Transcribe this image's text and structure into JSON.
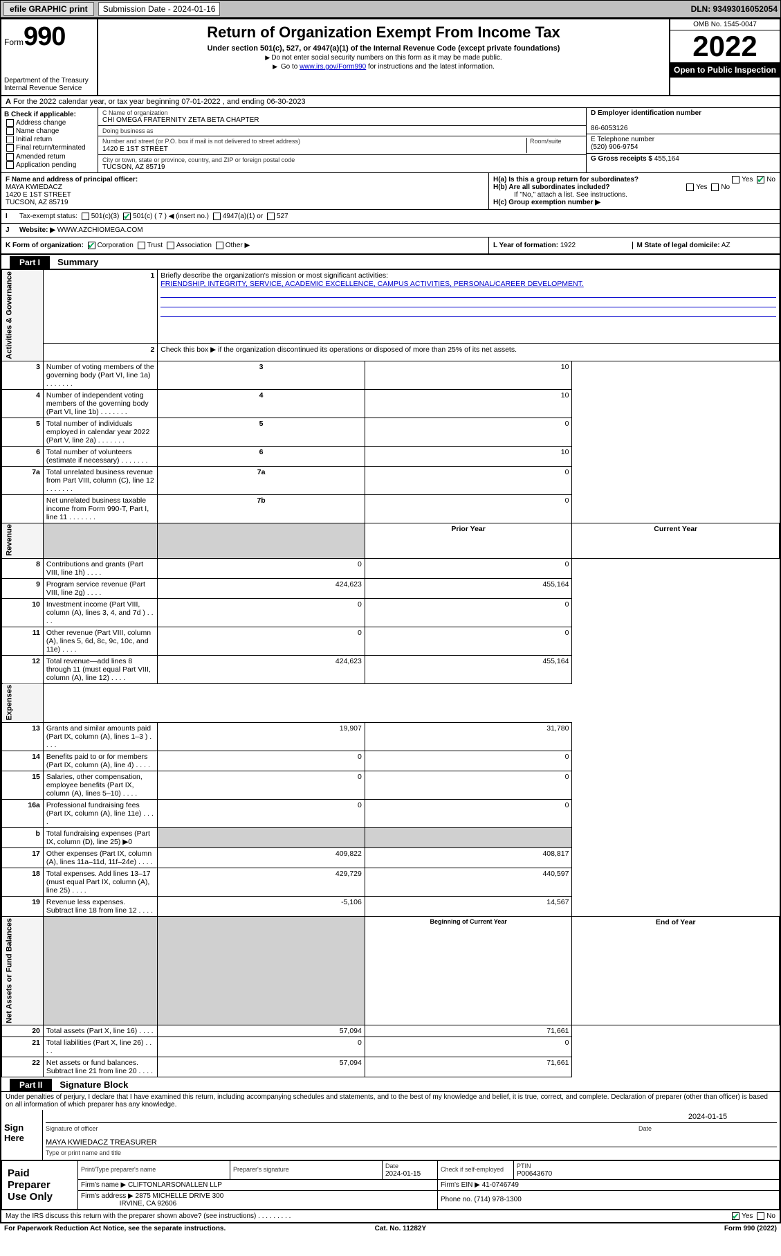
{
  "topbar": {
    "efile": "efile GRAPHIC print",
    "sub_label": "Submission Date  - 2024-01-16",
    "dln": "DLN: 93493016052054"
  },
  "header": {
    "form_prefix": "Form",
    "form_no": "990",
    "dept": "Department of the Treasury\nInternal Revenue Service",
    "title": "Return of Organization Exempt From Income Tax",
    "subtitle": "Under section 501(c), 527, or 4947(a)(1) of the Internal Revenue Code (except private foundations)",
    "note1": "Do not enter social security numbers on this form as it may be made public.",
    "note2_pre": "Go to ",
    "note2_link": "www.irs.gov/Form990",
    "note2_post": " for instructions and the latest information.",
    "omb": "OMB No. 1545-0047",
    "year": "2022",
    "open": "Open to Public Inspection"
  },
  "secA": "For the 2022 calendar year, or tax year beginning 07-01-2022  , and ending 06-30-2023",
  "colB": {
    "title": "B Check if applicable:",
    "items": [
      "Address change",
      "Name change",
      "Initial return",
      "Final return/terminated",
      "Amended return",
      "Application pending"
    ]
  },
  "colC": {
    "name_lbl": "C Name of organization",
    "name": "CHI OMEGA FRATERNITY ZETA BETA CHAPTER",
    "dba_lbl": "Doing business as",
    "addr_lbl": "Number and street (or P.O. box if mail is not delivered to street address)",
    "room_lbl": "Room/suite",
    "addr": "1420 E 1ST STREET",
    "city_lbl": "City or town, state or province, country, and ZIP or foreign postal code",
    "city": "TUCSON, AZ  85719"
  },
  "colD": {
    "ein_lbl": "D Employer identification number",
    "ein": "86-6053126",
    "tel_lbl": "E Telephone number",
    "tel": "(520) 906-9754",
    "gross_lbl": "G Gross receipts $",
    "gross": "455,164"
  },
  "rowF": {
    "lbl": "F Name and address of principal officer:",
    "name": "MAYA KWIEDACZ",
    "addr1": "1420 E 1ST STREET",
    "addr2": "TUCSON, AZ  85719"
  },
  "rowH": {
    "ha": "H(a)  Is this a group return for subordinates?",
    "hb": "H(b)  Are all subordinates included?",
    "hb_note": "If \"No,\" attach a list. See instructions.",
    "hc": "H(c)  Group exemption number ▶"
  },
  "rowI": {
    "lbl": "Tax-exempt status:",
    "c3": "501(c)(3)",
    "c7": "501(c) ( 7 ) ◀ (insert no.)",
    "a1": "4947(a)(1) or",
    "s527": "527"
  },
  "rowJ": {
    "lbl": "Website: ▶",
    "val": "WWW.AZCHIOMEGA.COM"
  },
  "rowK": {
    "lbl": "K Form of organization:",
    "opts": [
      "Corporation",
      "Trust",
      "Association",
      "Other ▶"
    ]
  },
  "rowL": {
    "lbl": "L Year of formation:",
    "val": "1922"
  },
  "rowM": {
    "lbl": "M State of legal domicile:",
    "val": "AZ"
  },
  "part1": {
    "hdr": "Part I",
    "title": "Summary",
    "line1_lbl": "Briefly describe the organization's mission or most significant activities:",
    "line1_val": "FRIENDSHIP, INTEGRITY, SERVICE, ACADEMIC EXCELLENCE, CAMPUS ACTIVITIES, PERSONAL/CAREER DEVELOPMENT.",
    "line2": "Check this box ▶      if the organization discontinued its operations or disposed of more than 25% of its net assets.",
    "rows_gov": [
      {
        "n": "3",
        "d": "Number of voting members of the governing body (Part VI, line 1a)",
        "c": "3",
        "v": "10"
      },
      {
        "n": "4",
        "d": "Number of independent voting members of the governing body (Part VI, line 1b)",
        "c": "4",
        "v": "10"
      },
      {
        "n": "5",
        "d": "Total number of individuals employed in calendar year 2022 (Part V, line 2a)",
        "c": "5",
        "v": "0"
      },
      {
        "n": "6",
        "d": "Total number of volunteers (estimate if necessary)",
        "c": "6",
        "v": "10"
      },
      {
        "n": "7a",
        "d": "Total unrelated business revenue from Part VIII, column (C), line 12",
        "c": "7a",
        "v": "0"
      },
      {
        "n": "",
        "d": "Net unrelated business taxable income from Form 990-T, Part I, line 11",
        "c": "7b",
        "v": "0"
      }
    ],
    "prior": "Prior Year",
    "current": "Current Year",
    "rows_rev": [
      {
        "n": "8",
        "d": "Contributions and grants (Part VIII, line 1h)",
        "p": "0",
        "c": "0"
      },
      {
        "n": "9",
        "d": "Program service revenue (Part VIII, line 2g)",
        "p": "424,623",
        "c": "455,164"
      },
      {
        "n": "10",
        "d": "Investment income (Part VIII, column (A), lines 3, 4, and 7d )",
        "p": "0",
        "c": "0"
      },
      {
        "n": "11",
        "d": "Other revenue (Part VIII, column (A), lines 5, 6d, 8c, 9c, 10c, and 11e)",
        "p": "0",
        "c": "0"
      },
      {
        "n": "12",
        "d": "Total revenue—add lines 8 through 11 (must equal Part VIII, column (A), line 12)",
        "p": "424,623",
        "c": "455,164"
      }
    ],
    "rows_exp": [
      {
        "n": "13",
        "d": "Grants and similar amounts paid (Part IX, column (A), lines 1–3 )",
        "p": "19,907",
        "c": "31,780"
      },
      {
        "n": "14",
        "d": "Benefits paid to or for members (Part IX, column (A), line 4)",
        "p": "0",
        "c": "0"
      },
      {
        "n": "15",
        "d": "Salaries, other compensation, employee benefits (Part IX, column (A), lines 5–10)",
        "p": "0",
        "c": "0"
      },
      {
        "n": "16a",
        "d": "Professional fundraising fees (Part IX, column (A), line 11e)",
        "p": "0",
        "c": "0"
      },
      {
        "n": "b",
        "d": "Total fundraising expenses (Part IX, column (D), line 25) ▶0",
        "p": "",
        "c": "",
        "shade": true
      },
      {
        "n": "17",
        "d": "Other expenses (Part IX, column (A), lines 11a–11d, 11f–24e)",
        "p": "409,822",
        "c": "408,817"
      },
      {
        "n": "18",
        "d": "Total expenses. Add lines 13–17 (must equal Part IX, column (A), line 25)",
        "p": "429,729",
        "c": "440,597"
      },
      {
        "n": "19",
        "d": "Revenue less expenses. Subtract line 18 from line 12",
        "p": "-5,106",
        "c": "14,567"
      }
    ],
    "boy": "Beginning of Current Year",
    "eoy": "End of Year",
    "rows_na": [
      {
        "n": "20",
        "d": "Total assets (Part X, line 16)",
        "p": "57,094",
        "c": "71,661"
      },
      {
        "n": "21",
        "d": "Total liabilities (Part X, line 26)",
        "p": "0",
        "c": "0"
      },
      {
        "n": "22",
        "d": "Net assets or fund balances. Subtract line 21 from line 20",
        "p": "57,094",
        "c": "71,661"
      }
    ],
    "sides": {
      "gov": "Activities & Governance",
      "rev": "Revenue",
      "exp": "Expenses",
      "na": "Net Assets or Fund Balances"
    }
  },
  "part2": {
    "hdr": "Part II",
    "title": "Signature Block",
    "decl": "Under penalties of perjury, I declare that I have examined this return, including accompanying schedules and statements, and to the best of my knowledge and belief, it is true, correct, and complete. Declaration of preparer (other than officer) is based on all information of which preparer has any knowledge.",
    "sign_here": "Sign Here",
    "sig_officer": "Signature of officer",
    "sig_date": "2024-01-15",
    "date_lbl": "Date",
    "officer_name": "MAYA KWIEDACZ TREASURER",
    "officer_lbl": "Type or print name and title",
    "paid": "Paid Preparer Use Only",
    "prep_name_lbl": "Print/Type preparer's name",
    "prep_sig_lbl": "Preparer's signature",
    "prep_date_lbl": "Date",
    "prep_date": "2024-01-15",
    "self_emp": "Check        if self-employed",
    "ptin_lbl": "PTIN",
    "ptin": "P00643670",
    "firm_lbl": "Firm's name    ▶",
    "firm": "CLIFTONLARSONALLEN LLP",
    "firm_ein_lbl": "Firm's EIN ▶",
    "firm_ein": "41-0746749",
    "firm_addr_lbl": "Firm's address ▶",
    "firm_addr": "2875 MICHELLE DRIVE 300",
    "firm_city": "IRVINE, CA  92606",
    "firm_phone_lbl": "Phone no.",
    "firm_phone": "(714) 978-1300",
    "irs_discuss": "May the IRS discuss this return with the preparer shown above? (see instructions)"
  },
  "footer": {
    "pra": "For Paperwork Reduction Act Notice, see the separate instructions.",
    "cat": "Cat. No. 11282Y",
    "form": "Form 990 (2022)"
  }
}
